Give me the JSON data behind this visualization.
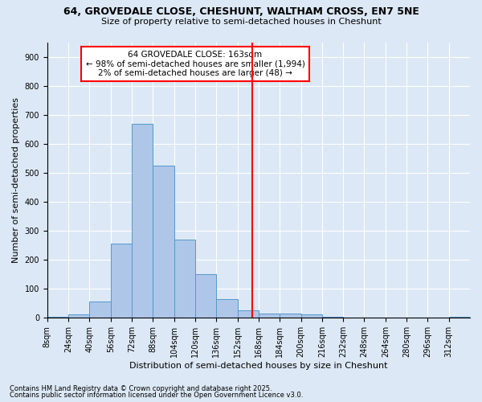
{
  "title_line1": "64, GROVEDALE CLOSE, CHESHUNT, WALTHAM CROSS, EN7 5NE",
  "title_line2": "Size of property relative to semi-detached houses in Cheshunt",
  "xlabel": "Distribution of semi-detached houses by size in Cheshunt",
  "ylabel": "Number of semi-detached properties",
  "annotation_line1": "64 GROVEDALE CLOSE: 163sqm",
  "annotation_line2": "← 98% of semi-detached houses are smaller (1,994)",
  "annotation_line3": "2% of semi-detached houses are larger (48) →",
  "footnote1": "Contains HM Land Registry data © Crown copyright and database right 2025.",
  "footnote2": "Contains public sector information licensed under the Open Government Licence v3.0.",
  "bar_color": "#aec6e8",
  "bar_edge_color": "#5599cc",
  "vline_color": "red",
  "vline_x": 163,
  "bin_edges": [
    8,
    24,
    40,
    56,
    72,
    88,
    104,
    120,
    136,
    152,
    168,
    184,
    200,
    216,
    232,
    248,
    264,
    280,
    296,
    312,
    328
  ],
  "bar_heights": [
    5,
    12,
    55,
    255,
    670,
    525,
    270,
    150,
    65,
    25,
    15,
    15,
    12,
    5,
    0,
    0,
    0,
    0,
    0,
    5
  ],
  "ylim": [
    0,
    950
  ],
  "yticks": [
    0,
    100,
    200,
    300,
    400,
    500,
    600,
    700,
    800,
    900
  ],
  "background_color": "#dce8f5",
  "annotation_box_color": "white",
  "annotation_box_edge": "red",
  "title1_fontsize": 9,
  "title2_fontsize": 8,
  "ylabel_fontsize": 8,
  "xlabel_fontsize": 8,
  "tick_fontsize": 7,
  "footnote_fontsize": 6
}
